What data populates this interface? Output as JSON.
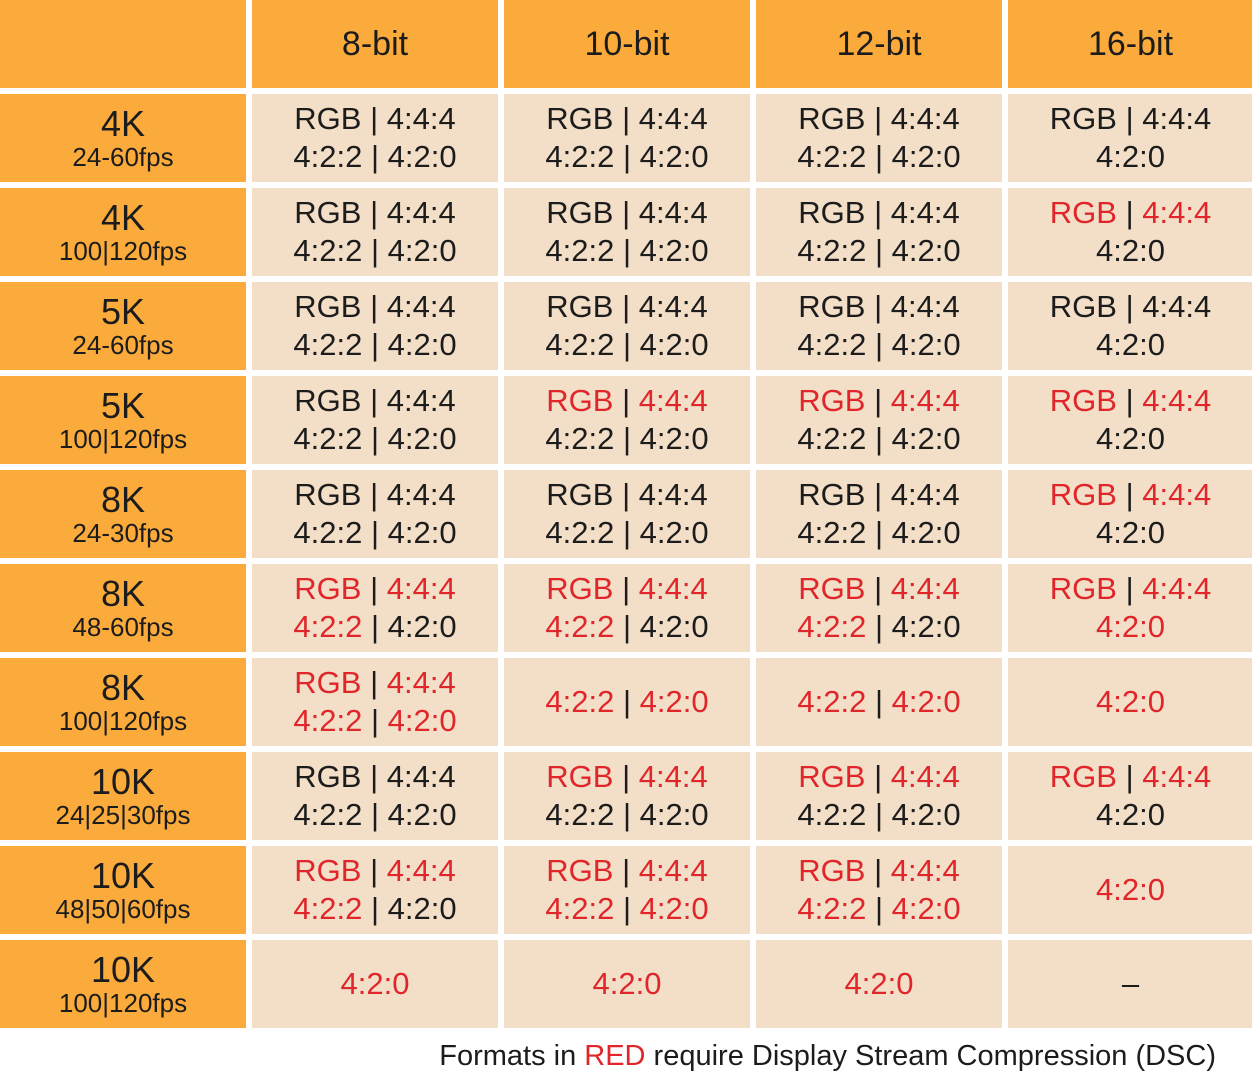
{
  "colors": {
    "header_bg": "#fbab3b",
    "cell_bg": "#f3dfc8",
    "dsc_text": "#e0262a",
    "text": "#1c1c1c"
  },
  "columns": [
    "8-bit",
    "10-bit",
    "12-bit",
    "16-bit"
  ],
  "rows": [
    {
      "resolution": "4K",
      "fps": "24-60fps",
      "cells": [
        [
          [
            "RGB",
            false
          ],
          [
            "4:4:4",
            false
          ],
          [
            "4:2:2",
            false
          ],
          [
            "4:2:0",
            false
          ]
        ],
        [
          [
            "RGB",
            false
          ],
          [
            "4:4:4",
            false
          ],
          [
            "4:2:2",
            false
          ],
          [
            "4:2:0",
            false
          ]
        ],
        [
          [
            "RGB",
            false
          ],
          [
            "4:4:4",
            false
          ],
          [
            "4:2:2",
            false
          ],
          [
            "4:2:0",
            false
          ]
        ],
        [
          [
            "RGB",
            false
          ],
          [
            "4:4:4",
            false
          ],
          [
            "4:2:0",
            false
          ]
        ]
      ]
    },
    {
      "resolution": "4K",
      "fps": "100|120fps",
      "cells": [
        [
          [
            "RGB",
            false
          ],
          [
            "4:4:4",
            false
          ],
          [
            "4:2:2",
            false
          ],
          [
            "4:2:0",
            false
          ]
        ],
        [
          [
            "RGB",
            false
          ],
          [
            "4:4:4",
            false
          ],
          [
            "4:2:2",
            false
          ],
          [
            "4:2:0",
            false
          ]
        ],
        [
          [
            "RGB",
            false
          ],
          [
            "4:4:4",
            false
          ],
          [
            "4:2:2",
            false
          ],
          [
            "4:2:0",
            false
          ]
        ],
        [
          [
            "RGB",
            true
          ],
          [
            "4:4:4",
            true
          ],
          [
            "4:2:0",
            false
          ]
        ]
      ]
    },
    {
      "resolution": "5K",
      "fps": "24-60fps",
      "cells": [
        [
          [
            "RGB",
            false
          ],
          [
            "4:4:4",
            false
          ],
          [
            "4:2:2",
            false
          ],
          [
            "4:2:0",
            false
          ]
        ],
        [
          [
            "RGB",
            false
          ],
          [
            "4:4:4",
            false
          ],
          [
            "4:2:2",
            false
          ],
          [
            "4:2:0",
            false
          ]
        ],
        [
          [
            "RGB",
            false
          ],
          [
            "4:4:4",
            false
          ],
          [
            "4:2:2",
            false
          ],
          [
            "4:2:0",
            false
          ]
        ],
        [
          [
            "RGB",
            false
          ],
          [
            "4:4:4",
            false
          ],
          [
            "4:2:0",
            false
          ]
        ]
      ]
    },
    {
      "resolution": "5K",
      "fps": "100|120fps",
      "cells": [
        [
          [
            "RGB",
            false
          ],
          [
            "4:4:4",
            false
          ],
          [
            "4:2:2",
            false
          ],
          [
            "4:2:0",
            false
          ]
        ],
        [
          [
            "RGB",
            true
          ],
          [
            "4:4:4",
            true
          ],
          [
            "4:2:2",
            false
          ],
          [
            "4:2:0",
            false
          ]
        ],
        [
          [
            "RGB",
            true
          ],
          [
            "4:4:4",
            true
          ],
          [
            "4:2:2",
            false
          ],
          [
            "4:2:0",
            false
          ]
        ],
        [
          [
            "RGB",
            true
          ],
          [
            "4:4:4",
            true
          ],
          [
            "4:2:0",
            false
          ]
        ]
      ]
    },
    {
      "resolution": "8K",
      "fps": "24-30fps",
      "cells": [
        [
          [
            "RGB",
            false
          ],
          [
            "4:4:4",
            false
          ],
          [
            "4:2:2",
            false
          ],
          [
            "4:2:0",
            false
          ]
        ],
        [
          [
            "RGB",
            false
          ],
          [
            "4:4:4",
            false
          ],
          [
            "4:2:2",
            false
          ],
          [
            "4:2:0",
            false
          ]
        ],
        [
          [
            "RGB",
            false
          ],
          [
            "4:4:4",
            false
          ],
          [
            "4:2:2",
            false
          ],
          [
            "4:2:0",
            false
          ]
        ],
        [
          [
            "RGB",
            true
          ],
          [
            "4:4:4",
            true
          ],
          [
            "4:2:0",
            false
          ]
        ]
      ]
    },
    {
      "resolution": "8K",
      "fps": "48-60fps",
      "cells": [
        [
          [
            "RGB",
            true
          ],
          [
            "4:4:4",
            true
          ],
          [
            "4:2:2",
            true
          ],
          [
            "4:2:0",
            false
          ]
        ],
        [
          [
            "RGB",
            true
          ],
          [
            "4:4:4",
            true
          ],
          [
            "4:2:2",
            true
          ],
          [
            "4:2:0",
            false
          ]
        ],
        [
          [
            "RGB",
            true
          ],
          [
            "4:4:4",
            true
          ],
          [
            "4:2:2",
            true
          ],
          [
            "4:2:0",
            false
          ]
        ],
        [
          [
            "RGB",
            true
          ],
          [
            "4:4:4",
            true
          ],
          [
            "4:2:0",
            true
          ]
        ]
      ]
    },
    {
      "resolution": "8K",
      "fps": "100|120fps",
      "cells": [
        [
          [
            "RGB",
            true
          ],
          [
            "4:4:4",
            true
          ],
          [
            "4:2:2",
            true
          ],
          [
            "4:2:0",
            true
          ]
        ],
        [
          [
            "4:2:2",
            true
          ],
          [
            "4:2:0",
            true
          ]
        ],
        [
          [
            "4:2:2",
            true
          ],
          [
            "4:2:0",
            true
          ]
        ],
        [
          [
            "4:2:0",
            true
          ]
        ]
      ]
    },
    {
      "resolution": "10K",
      "fps": "24|25|30fps",
      "cells": [
        [
          [
            "RGB",
            false
          ],
          [
            "4:4:4",
            false
          ],
          [
            "4:2:2",
            false
          ],
          [
            "4:2:0",
            false
          ]
        ],
        [
          [
            "RGB",
            true
          ],
          [
            "4:4:4",
            true
          ],
          [
            "4:2:2",
            false
          ],
          [
            "4:2:0",
            false
          ]
        ],
        [
          [
            "RGB",
            true
          ],
          [
            "4:4:4",
            true
          ],
          [
            "4:2:2",
            false
          ],
          [
            "4:2:0",
            false
          ]
        ],
        [
          [
            "RGB",
            true
          ],
          [
            "4:4:4",
            true
          ],
          [
            "4:2:0",
            false
          ]
        ]
      ]
    },
    {
      "resolution": "10K",
      "fps": "48|50|60fps",
      "cells": [
        [
          [
            "RGB",
            true
          ],
          [
            "4:4:4",
            true
          ],
          [
            "4:2:2",
            true
          ],
          [
            "4:2:0",
            false
          ]
        ],
        [
          [
            "RGB",
            true
          ],
          [
            "4:4:4",
            true
          ],
          [
            "4:2:2",
            true
          ],
          [
            "4:2:0",
            true
          ]
        ],
        [
          [
            "RGB",
            true
          ],
          [
            "4:4:4",
            true
          ],
          [
            "4:2:2",
            true
          ],
          [
            "4:2:0",
            true
          ]
        ],
        [
          [
            "4:2:0",
            true
          ]
        ]
      ]
    },
    {
      "resolution": "10K",
      "fps": "100|120fps",
      "cells": [
        [
          [
            "4:2:0",
            true
          ]
        ],
        [
          [
            "4:2:0",
            true
          ]
        ],
        [
          [
            "4:2:0",
            true
          ]
        ],
        [
          [
            "–",
            false
          ]
        ]
      ]
    }
  ],
  "footer": {
    "prefix": "Formats in ",
    "highlight": "RED",
    "suffix": " require Display Stream Compression (DSC)"
  }
}
